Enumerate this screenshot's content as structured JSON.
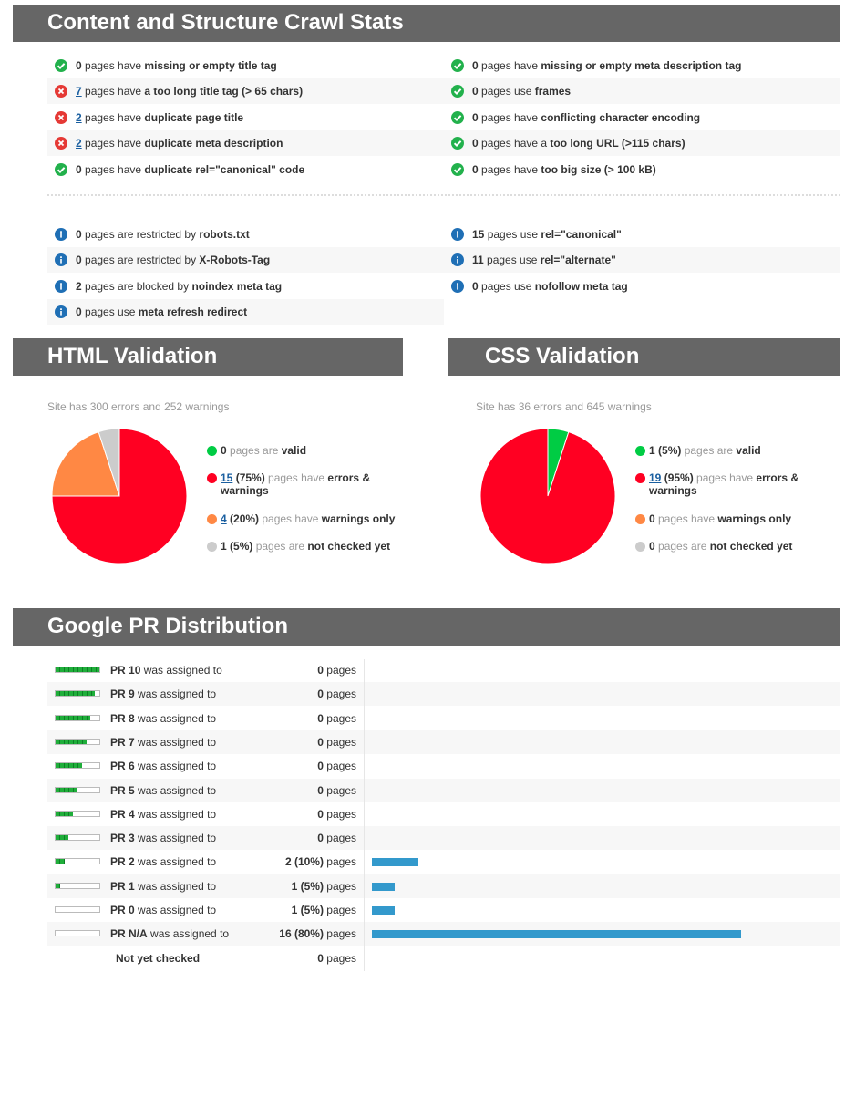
{
  "colors": {
    "header_bg": "#666666",
    "ok": "#22b14c",
    "error": "#e53935",
    "info": "#1f6fb5",
    "pie_valid": "#00cc44",
    "pie_errors": "#ff0022",
    "pie_warnings": "#ff8844",
    "pie_unchecked": "#cccccc",
    "pr_bar": "#3399cc"
  },
  "crawl": {
    "title": "Content and Structure Crawl Stats",
    "left": [
      {
        "status": "ok",
        "count": "0",
        "pre": " pages have ",
        "bold": "missing or empty title tag",
        "post": "",
        "link": false
      },
      {
        "status": "error",
        "count": "7",
        "pre": " pages have ",
        "bold": "a too long title tag (> 65 chars)",
        "post": "",
        "link": true
      },
      {
        "status": "error",
        "count": "2",
        "pre": " pages have ",
        "bold": "duplicate page title",
        "post": "",
        "link": true
      },
      {
        "status": "error",
        "count": "2",
        "pre": " pages have ",
        "bold": "duplicate meta description",
        "post": "",
        "link": true
      },
      {
        "status": "ok",
        "count": "0",
        "pre": " pages have ",
        "bold": "duplicate rel=\"canonical\" code",
        "post": "",
        "link": false
      }
    ],
    "right": [
      {
        "status": "ok",
        "count": "0",
        "pre": " pages have ",
        "bold": "missing or empty meta description tag",
        "post": "",
        "link": false
      },
      {
        "status": "ok",
        "count": "0",
        "pre": " pages use ",
        "bold": "frames",
        "post": "",
        "link": false
      },
      {
        "status": "ok",
        "count": "0",
        "pre": " pages have ",
        "bold": "conflicting character encoding",
        "post": "",
        "link": false
      },
      {
        "status": "ok",
        "count": "0",
        "pre": " pages have a ",
        "bold": "too long URL (>115 chars)",
        "post": "",
        "link": false
      },
      {
        "status": "ok",
        "count": "0",
        "pre": " pages have ",
        "bold": "too big size (> 100 kB)",
        "post": "",
        "link": false
      }
    ],
    "info_left": [
      {
        "status": "info",
        "count": "0",
        "pre": " pages are restricted by ",
        "bold": "robots.txt",
        "post": "",
        "link": false
      },
      {
        "status": "info",
        "count": "0",
        "pre": " pages are restricted by ",
        "bold": "X-Robots-Tag",
        "post": "",
        "link": false
      },
      {
        "status": "info",
        "count": "2",
        "pre": " pages are blocked by ",
        "bold": "noindex meta tag",
        "post": "",
        "link": false
      },
      {
        "status": "info",
        "count": "0",
        "pre": " pages use ",
        "bold": "meta refresh redirect",
        "post": "",
        "link": false
      }
    ],
    "info_right": [
      {
        "status": "info",
        "count": "15",
        "pre": " pages use ",
        "bold": "rel=\"canonical\"",
        "post": "",
        "link": false
      },
      {
        "status": "info",
        "count": "11",
        "pre": " pages use ",
        "bold": "rel=\"alternate\"",
        "post": "",
        "link": false
      },
      {
        "status": "info",
        "count": "0",
        "pre": " pages use ",
        "bold": "nofollow meta tag",
        "post": "",
        "link": false
      }
    ]
  },
  "html_validation": {
    "title": "HTML Validation",
    "summary": "Site has 300 errors and 252 warnings"
  },
  "css_validation": {
    "title": "CSS Validation",
    "summary": "Site has 36 errors and 645 warnings"
  },
  "pr": {
    "title": "Google PR Distribution",
    "not_checked_label": "Not yet checked"
  },
  "chart_data": [
    {
      "type": "pie",
      "name": "html",
      "slices": [
        {
          "label": "valid",
          "count": 0,
          "count_text": "0",
          "pct_text": "",
          "pre": " pages are ",
          "bold": "valid",
          "color": "#00cc44",
          "link": false
        },
        {
          "label": "errors & warnings",
          "count": 15,
          "count_text": "15",
          "pct_text": " (75%)",
          "pre": " pages have ",
          "bold": "errors & warnings",
          "color": "#ff0022",
          "link": true
        },
        {
          "label": "warnings only",
          "count": 4,
          "count_text": "4",
          "pct_text": " (20%)",
          "pre": " pages have ",
          "bold": "warnings only",
          "color": "#ff8844",
          "link": true
        },
        {
          "label": "not checked yet",
          "count": 1,
          "count_text": "1",
          "pct_text": " (5%)",
          "pre": " pages are ",
          "bold": "not checked yet",
          "color": "#cccccc",
          "link": false
        }
      ]
    },
    {
      "type": "pie",
      "name": "css",
      "slices": [
        {
          "label": "valid",
          "count": 1,
          "count_text": "1",
          "pct_text": " (5%)",
          "pre": " pages are ",
          "bold": "valid",
          "color": "#00cc44",
          "link": false
        },
        {
          "label": "errors & warnings",
          "count": 19,
          "count_text": "19",
          "pct_text": " (95%)",
          "pre": " pages have ",
          "bold": "errors & warnings",
          "color": "#ff0022",
          "link": true
        },
        {
          "label": "warnings only",
          "count": 0,
          "count_text": "0",
          "pct_text": "",
          "pre": " pages have ",
          "bold": "warnings only",
          "color": "#ff8844",
          "link": false
        },
        {
          "label": "not checked yet",
          "count": 0,
          "count_text": "0",
          "pct_text": "",
          "pre": " pages are ",
          "bold": "not checked yet",
          "color": "#cccccc",
          "link": false
        }
      ]
    },
    {
      "type": "bar",
      "name": "pr-distribution",
      "orientation": "horizontal",
      "rows": [
        {
          "pr": "10",
          "level": 10,
          "pages": 0,
          "count_text": "0",
          "pct_text": ""
        },
        {
          "pr": "9",
          "level": 9,
          "pages": 0,
          "count_text": "0",
          "pct_text": ""
        },
        {
          "pr": "8",
          "level": 8,
          "pages": 0,
          "count_text": "0",
          "pct_text": ""
        },
        {
          "pr": "7",
          "level": 7,
          "pages": 0,
          "count_text": "0",
          "pct_text": ""
        },
        {
          "pr": "6",
          "level": 6,
          "pages": 0,
          "count_text": "0",
          "pct_text": ""
        },
        {
          "pr": "5",
          "level": 5,
          "pages": 0,
          "count_text": "0",
          "pct_text": ""
        },
        {
          "pr": "4",
          "level": 4,
          "pages": 0,
          "count_text": "0",
          "pct_text": ""
        },
        {
          "pr": "3",
          "level": 3,
          "pages": 0,
          "count_text": "0",
          "pct_text": ""
        },
        {
          "pr": "2",
          "level": 2,
          "pages": 2,
          "count_text": "2",
          "pct_text": " (10%)"
        },
        {
          "pr": "1",
          "level": 1,
          "pages": 1,
          "count_text": "1",
          "pct_text": " (5%)"
        },
        {
          "pr": "0",
          "level": 0,
          "pages": 1,
          "count_text": "1",
          "pct_text": " (5%)"
        },
        {
          "pr": "N/A",
          "level": 0,
          "pages": 16,
          "count_text": "16",
          "pct_text": " (80%)"
        }
      ],
      "not_checked_pages": 0,
      "not_checked_count_text": "0",
      "unit": "pages",
      "assigned_text": "was assigned to",
      "pr_prefix": "PR"
    }
  ]
}
